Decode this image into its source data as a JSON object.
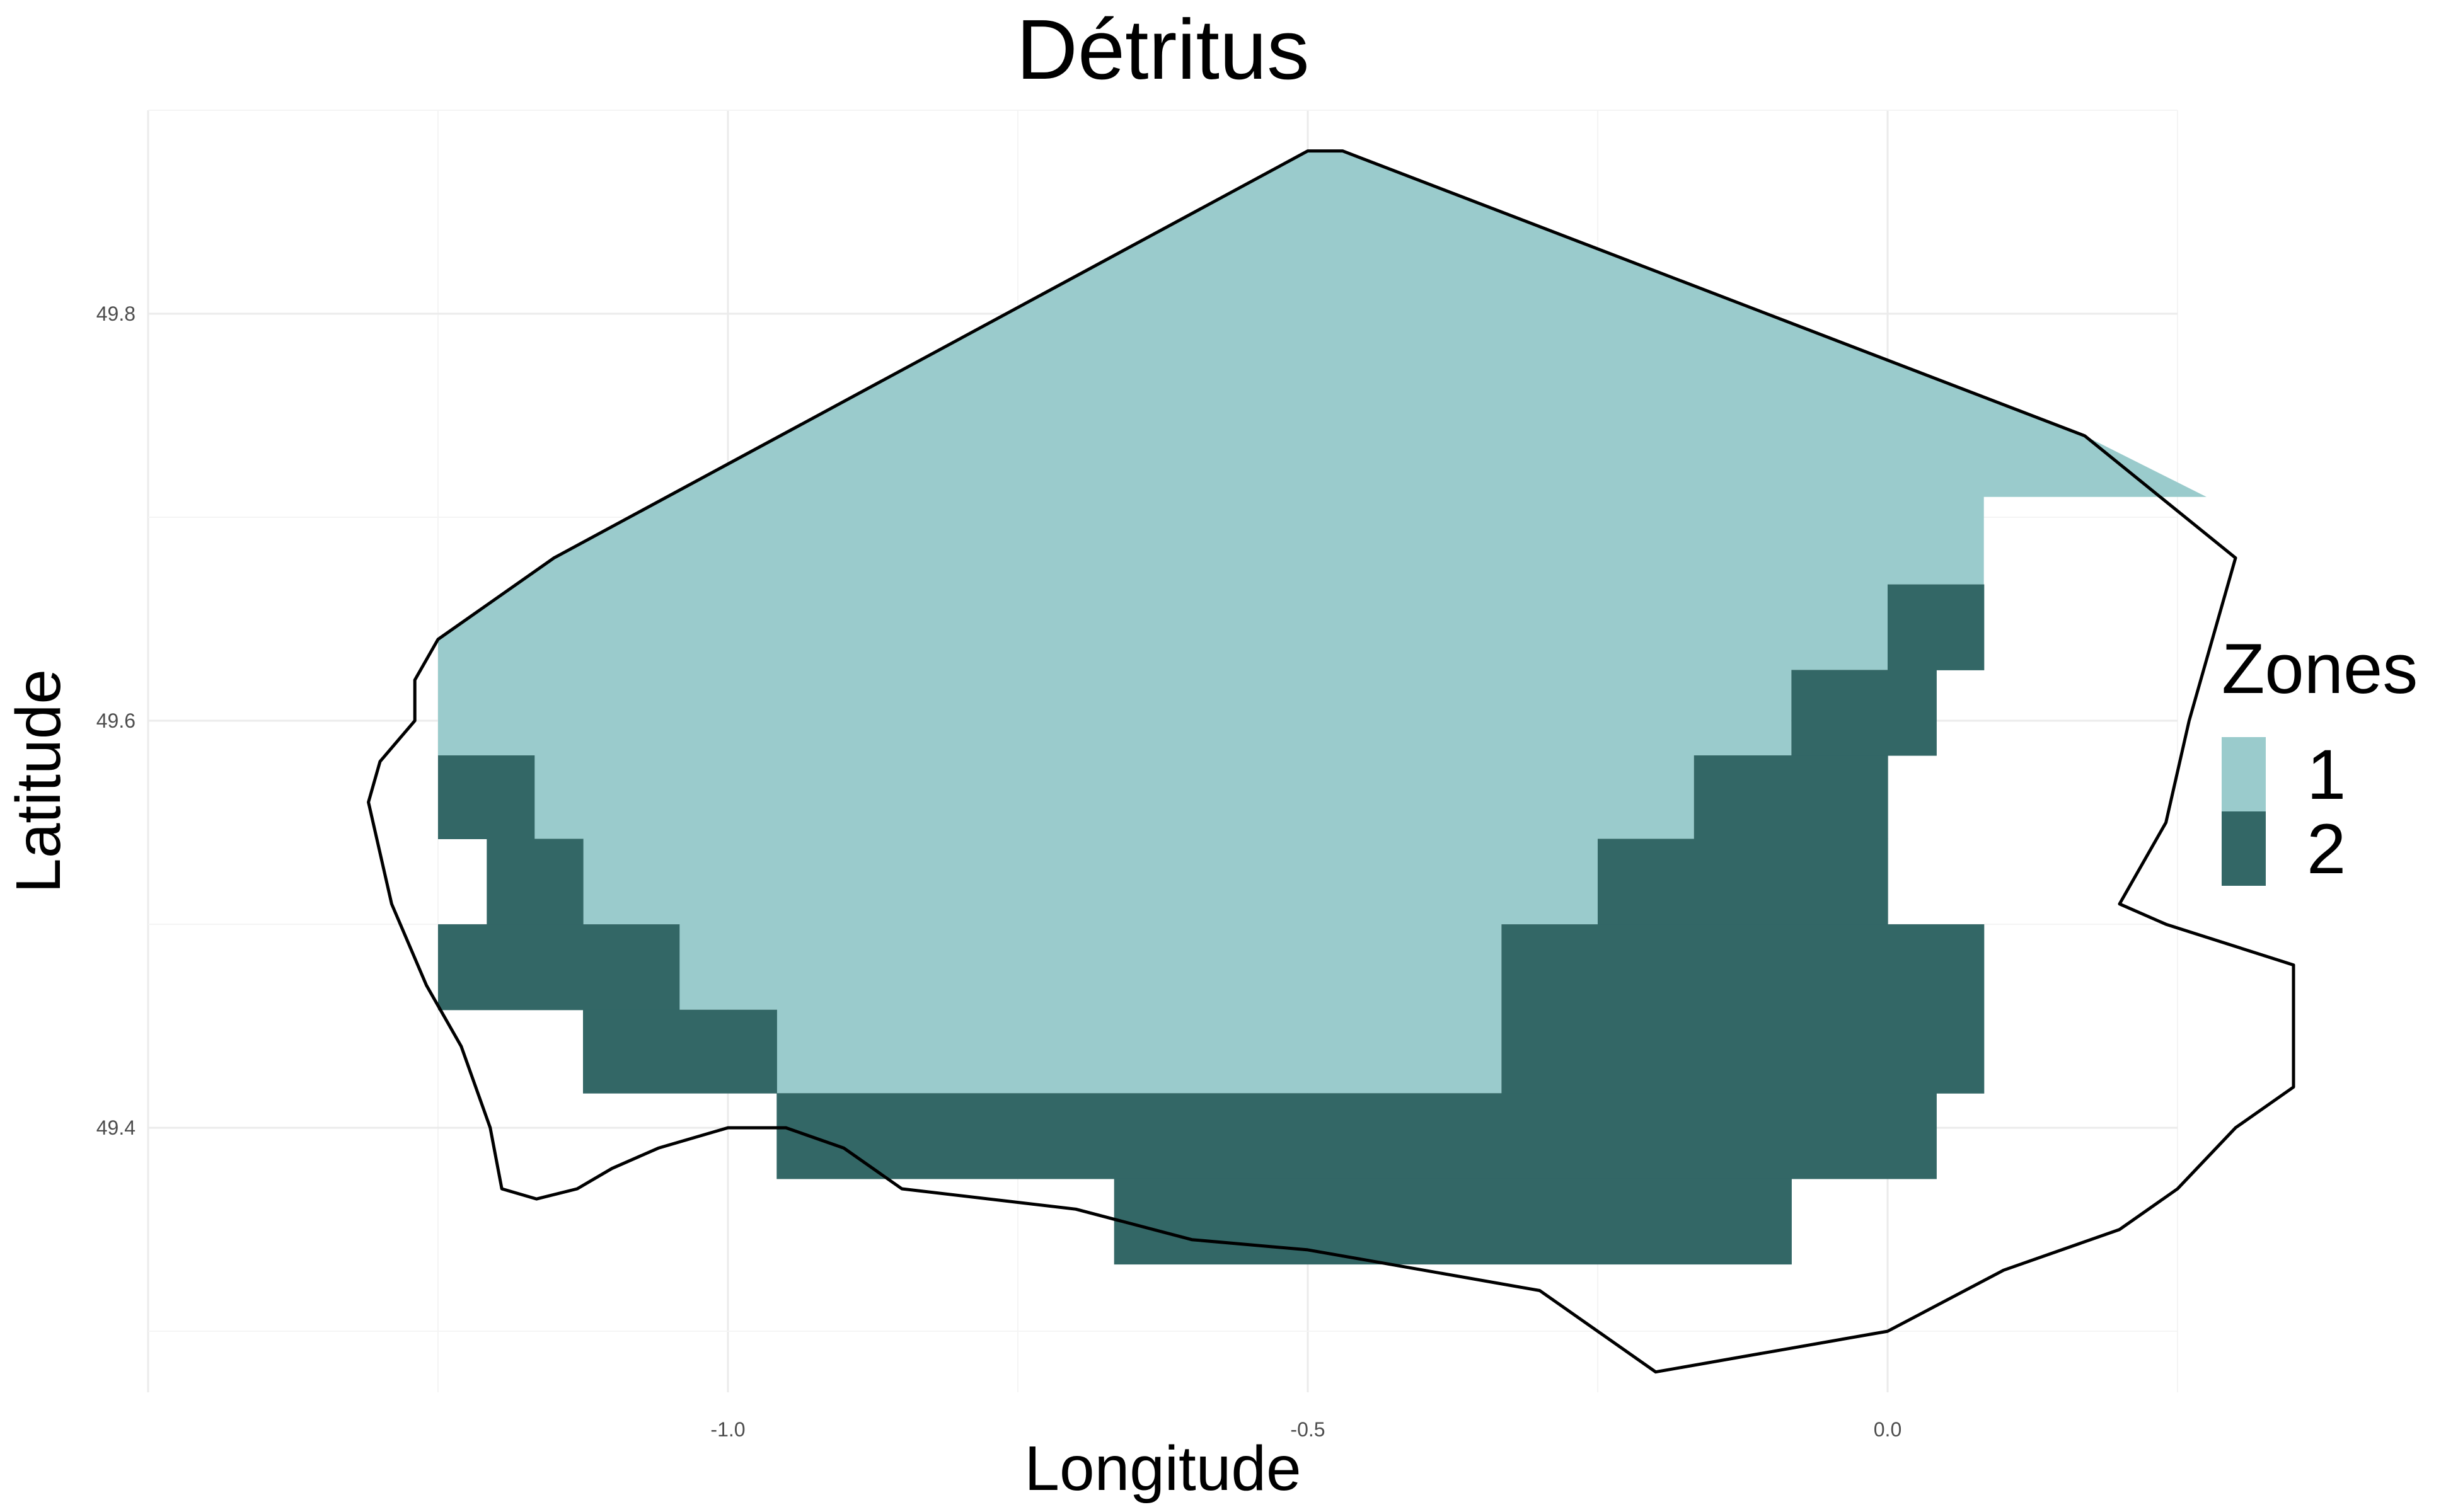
{
  "chart_data": {
    "type": "heatmap",
    "title": "Détritus",
    "xlabel": "Longitude",
    "ylabel": "Latitude",
    "xlim": [
      -1.5,
      0.25
    ],
    "ylim": [
      49.27,
      49.9
    ],
    "x_ticks": [
      {
        "value": -1.0,
        "label": "-1.0"
      },
      {
        "value": -0.5,
        "label": "-0.5"
      },
      {
        "value": 0.0,
        "label": "0.0"
      }
    ],
    "y_ticks": [
      {
        "value": 49.4,
        "label": "49.4"
      },
      {
        "value": 49.6,
        "label": "49.6"
      },
      {
        "value": 49.8,
        "label": "49.8"
      }
    ],
    "grid": true,
    "legend": {
      "title": "Zones",
      "position": "right",
      "entries": [
        {
          "label": "1",
          "color": "#9acbcc"
        },
        {
          "label": "2",
          "color": "#336766"
        }
      ]
    },
    "zone_colors": {
      "1": "#9acbcc",
      "2": "#336766"
    },
    "cell_size": {
      "lon": 0.0833,
      "lat": 0.0417
    },
    "zone1_outline": [
      [
        -1.25,
        49.64
      ],
      [
        -1.15,
        49.68
      ],
      [
        -0.5,
        49.88
      ],
      [
        -0.47,
        49.88
      ],
      [
        0.17,
        49.74
      ],
      [
        0.275,
        49.71
      ],
      [
        0.083,
        49.71
      ],
      [
        0.083,
        49.667
      ],
      [
        0.0,
        49.667
      ],
      [
        0.0,
        49.625
      ],
      [
        -0.083,
        49.625
      ],
      [
        -0.083,
        49.583
      ],
      [
        -0.167,
        49.583
      ],
      [
        -0.167,
        49.542
      ],
      [
        -0.25,
        49.542
      ],
      [
        -0.25,
        49.5
      ],
      [
        -0.333,
        49.5
      ],
      [
        -0.333,
        49.417
      ],
      [
        -0.958,
        49.417
      ],
      [
        -0.958,
        49.458
      ],
      [
        -1.042,
        49.458
      ],
      [
        -1.042,
        49.5
      ],
      [
        -1.125,
        49.5
      ],
      [
        -1.125,
        49.542
      ],
      [
        -1.208,
        49.542
      ],
      [
        -1.208,
        49.583
      ],
      [
        -1.25,
        49.583
      ],
      [
        -1.25,
        49.625
      ],
      [
        -1.25,
        49.64
      ]
    ],
    "zone2_cells": [
      {
        "lon_min": -1.25,
        "lon_max": -1.167,
        "lat_min": 49.542,
        "lat_max": 49.583
      },
      {
        "lon_min": -1.208,
        "lon_max": -1.125,
        "lat_min": 49.5,
        "lat_max": 49.542
      },
      {
        "lon_min": -1.25,
        "lon_max": -1.042,
        "lat_min": 49.458,
        "lat_max": 49.5
      },
      {
        "lon_min": -1.125,
        "lon_max": -0.958,
        "lat_min": 49.417,
        "lat_max": 49.458
      },
      {
        "lon_min": -0.958,
        "lon_max": 0.042,
        "lat_min": 49.375,
        "lat_max": 49.417
      },
      {
        "lon_min": -0.667,
        "lon_max": -0.083,
        "lat_min": 49.333,
        "lat_max": 49.375
      },
      {
        "lon_min": -0.333,
        "lon_max": 0.083,
        "lat_min": 49.417,
        "lat_max": 49.5
      },
      {
        "lon_min": -0.25,
        "lon_max": 0.0,
        "lat_min": 49.5,
        "lat_max": 49.542
      },
      {
        "lon_min": -0.167,
        "lon_max": 0.0,
        "lat_min": 49.542,
        "lat_max": 49.583
      },
      {
        "lon_min": -0.083,
        "lon_max": 0.042,
        "lat_min": 49.583,
        "lat_max": 49.625
      },
      {
        "lon_min": 0.0,
        "lon_max": 0.083,
        "lat_min": 49.625,
        "lat_max": 49.667
      }
    ],
    "coastline": [
      [
        -1.25,
        49.64
      ],
      [
        -1.15,
        49.68
      ],
      [
        -0.5,
        49.88
      ],
      [
        -0.47,
        49.88
      ],
      [
        0.17,
        49.74
      ],
      [
        0.3,
        49.68
      ],
      [
        0.28,
        49.64
      ],
      [
        0.26,
        49.6
      ],
      [
        0.24,
        49.55
      ],
      [
        0.2,
        49.51
      ],
      [
        0.24,
        49.5
      ],
      [
        0.35,
        49.48
      ],
      [
        0.35,
        49.42
      ],
      [
        0.3,
        49.4
      ],
      [
        0.25,
        49.37
      ],
      [
        0.2,
        49.35
      ],
      [
        0.1,
        49.33
      ],
      [
        0.0,
        49.3
      ],
      [
        -0.1,
        49.29
      ],
      [
        -0.2,
        49.28
      ],
      [
        -0.3,
        49.32
      ],
      [
        -0.4,
        49.33
      ],
      [
        -0.5,
        49.34
      ],
      [
        -0.6,
        49.345
      ],
      [
        -0.7,
        49.36
      ],
      [
        -0.85,
        49.37
      ],
      [
        -0.9,
        49.39
      ],
      [
        -0.95,
        49.4
      ],
      [
        -1.0,
        49.4
      ],
      [
        -1.06,
        49.39
      ],
      [
        -1.1,
        49.38
      ],
      [
        -1.13,
        49.37
      ],
      [
        -1.165,
        49.365
      ],
      [
        -1.195,
        49.37
      ],
      [
        -1.205,
        49.4
      ],
      [
        -1.23,
        49.44
      ],
      [
        -1.26,
        49.47
      ],
      [
        -1.29,
        49.51
      ],
      [
        -1.31,
        49.56
      ],
      [
        -1.3,
        49.58
      ],
      [
        -1.27,
        49.6
      ],
      [
        -1.27,
        49.62
      ],
      [
        -1.25,
        49.64
      ]
    ]
  }
}
